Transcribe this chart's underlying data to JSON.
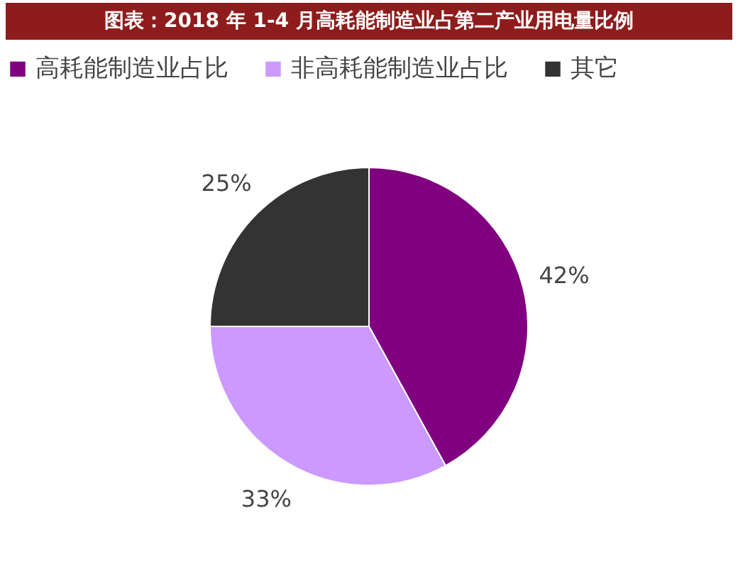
{
  "chart_data": {
    "type": "pie",
    "title": "图表：2018 年 1-4 月高耗能制造业占第二产业用电量比例",
    "categories": [
      "高耗能制造业占比",
      "非高耗能制造业占比",
      "其它"
    ],
    "values": [
      42,
      33,
      25
    ],
    "colors": [
      "#800080",
      "#cc99ff",
      "#333333"
    ],
    "value_labels": [
      "42%",
      "33%",
      "25%"
    ],
    "legend": "top"
  }
}
